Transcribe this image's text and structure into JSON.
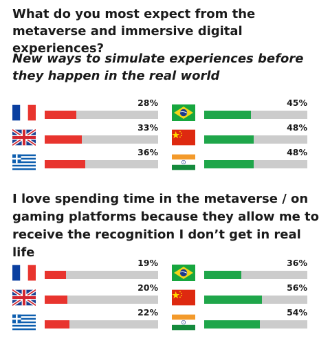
{
  "title": "What do you most expect from the metaverse and immersive digital experiences?",
  "chart_data": [
    {
      "type": "bar",
      "title": "New ways to simulate experiences before they happen in the real world",
      "categories": [
        "France",
        "United Kingdom",
        "Greece",
        "Brazil",
        "China",
        "India"
      ],
      "flags": [
        "france-flag-icon",
        "uk-flag-icon",
        "greece-flag-icon",
        "brazil-flag-icon",
        "china-flag-icon",
        "india-flag-icon"
      ],
      "values": [
        28,
        33,
        36,
        45,
        48,
        48
      ],
      "labels": [
        "28%",
        "33%",
        "36%",
        "45%",
        "48%",
        "48%"
      ],
      "colors": [
        "#e8342e",
        "#e8342e",
        "#e8342e",
        "#1fa64a",
        "#1fa64a",
        "#1fa64a"
      ],
      "ylim": [
        0,
        100
      ]
    },
    {
      "type": "bar",
      "title": "I love spending time in the metaverse / on gaming platforms because they allow me to receive the recognition I don’t get in real life",
      "categories": [
        "France",
        "United Kingdom",
        "Greece",
        "Brazil",
        "China",
        "India"
      ],
      "flags": [
        "france-flag-icon",
        "uk-flag-icon",
        "greece-flag-icon",
        "brazil-flag-icon",
        "china-flag-icon",
        "india-flag-icon"
      ],
      "values": [
        19,
        20,
        22,
        36,
        56,
        54
      ],
      "labels": [
        "19%",
        "20%",
        "22%",
        "36%",
        "56%",
        "54%"
      ],
      "colors": [
        "#e8342e",
        "#e8342e",
        "#e8342e",
        "#1fa64a",
        "#1fa64a",
        "#1fa64a"
      ],
      "ylim": [
        0,
        100
      ]
    }
  ],
  "colors": {
    "track": "#cccccc",
    "europe": "#e8342e",
    "emerging": "#1fa64a"
  }
}
